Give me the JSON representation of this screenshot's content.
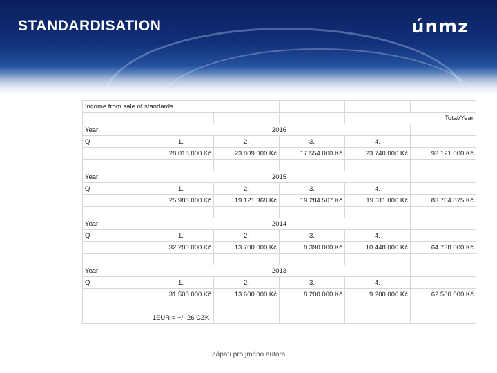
{
  "header": {
    "title": "STANDARDISATION",
    "logo_text": "únmz"
  },
  "table": {
    "caption": "Income from sale of standards",
    "total_label": "Total/Year",
    "blocks": [
      {
        "year_label": "Year",
        "year": "2016",
        "q_label": "Q",
        "quarters": [
          "1.",
          "2.",
          "3.",
          "4."
        ],
        "values": [
          "28 018 000 Kč",
          "23 809 000 Kč",
          "17 554 000 Kč",
          "23 740 000 Kč"
        ],
        "total": "93 121 000 Kč"
      },
      {
        "year_label": "Year",
        "year": "2015",
        "q_label": "Q",
        "quarters": [
          "1.",
          "2.",
          "3.",
          "4."
        ],
        "values": [
          "25 988 000 Kč",
          "19 121 368 Kč",
          "19 284 507 Kč",
          "19 311 000 Kč"
        ],
        "total": "83 704 875 Kč"
      },
      {
        "year_label": "Year",
        "year": "2014",
        "q_label": "Q",
        "quarters": [
          "1.",
          "2.",
          "3.",
          "4."
        ],
        "values": [
          "32 200 000 Kč",
          "13 700 000 Kč",
          "8 390 000 Kč",
          "10 448 000 Kč"
        ],
        "total": "64 738 000 Kč"
      },
      {
        "year_label": "Year",
        "year": "2013",
        "q_label": "Q",
        "quarters": [
          "1.",
          "2.",
          "3.",
          "4."
        ],
        "values": [
          "31 500 000 Kč",
          "13 600 000 Kč",
          "8 200 000 Kč",
          "9 200 000 Kč"
        ],
        "total": "62 500 000 Kč"
      }
    ],
    "note": "1EUR = +/- 26 CZK"
  },
  "footer": {
    "text": "Zápatí pro jméno autora"
  }
}
